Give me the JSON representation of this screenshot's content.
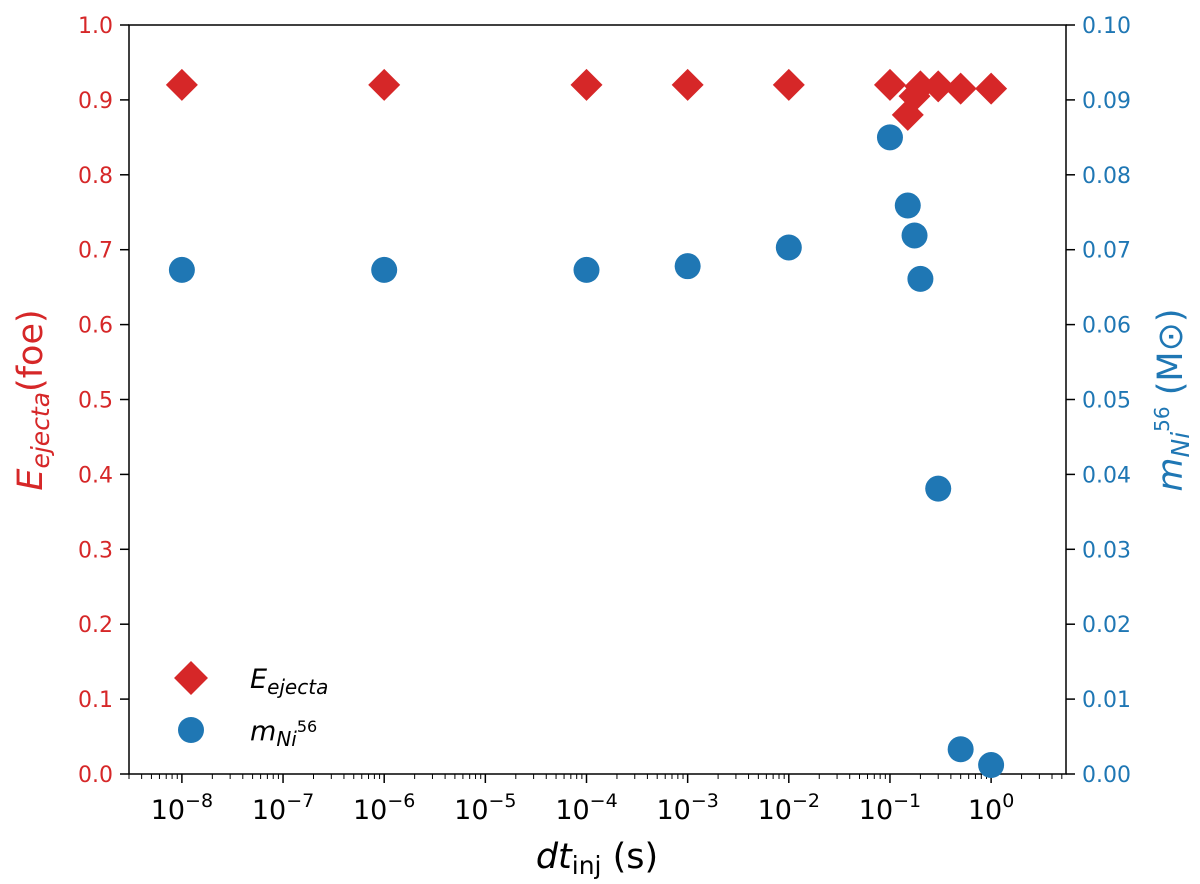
{
  "chart_data": {
    "type": "scatter",
    "x_scale": "log",
    "xlim": [
      3e-09,
      5.5
    ],
    "ylim_left": [
      0,
      1.0
    ],
    "ylim_right": [
      0,
      0.1
    ],
    "x_ticks": [
      1e-08,
      1e-07,
      1e-06,
      1e-05,
      0.0001,
      0.001,
      0.01,
      0.1,
      1
    ],
    "x_tick_labels": [
      {
        "base": "10",
        "exp": "−8"
      },
      {
        "base": "10",
        "exp": "−7"
      },
      {
        "base": "10",
        "exp": "−6"
      },
      {
        "base": "10",
        "exp": "−5"
      },
      {
        "base": "10",
        "exp": "−4"
      },
      {
        "base": "10",
        "exp": "−3"
      },
      {
        "base": "10",
        "exp": "−2"
      },
      {
        "base": "10",
        "exp": "−1"
      },
      {
        "base": "10",
        "exp": "0"
      }
    ],
    "y_left_ticks": [
      "0.0",
      "0.1",
      "0.2",
      "0.3",
      "0.4",
      "0.5",
      "0.6",
      "0.7",
      "0.8",
      "0.9",
      "1.0"
    ],
    "y_right_ticks": [
      "0.00",
      "0.01",
      "0.02",
      "0.03",
      "0.04",
      "0.05",
      "0.06",
      "0.07",
      "0.08",
      "0.09",
      "0.10"
    ],
    "xlabel": {
      "main": "dt",
      "sub": "inj",
      "unit": " (s)"
    },
    "ylabel_left": {
      "main": "E",
      "sub": "ejecta",
      "unit": "(foe)"
    },
    "ylabel_right": {
      "main": "m",
      "sub": "Ni",
      "sup": "56",
      "unit": " (M⊙)"
    },
    "series": [
      {
        "name": "E_ejecta",
        "legend": {
          "main": "E",
          "sub": "ejecta"
        },
        "axis": "left",
        "marker": "diamond",
        "color": "#d62728",
        "points": [
          {
            "x": 1e-08,
            "y": 0.92
          },
          {
            "x": 1e-06,
            "y": 0.92
          },
          {
            "x": 0.0001,
            "y": 0.92
          },
          {
            "x": 0.001,
            "y": 0.92
          },
          {
            "x": 0.01,
            "y": 0.92
          },
          {
            "x": 0.1,
            "y": 0.92
          },
          {
            "x": 0.15,
            "y": 0.88
          },
          {
            "x": 0.175,
            "y": 0.905
          },
          {
            "x": 0.2,
            "y": 0.918
          },
          {
            "x": 0.3,
            "y": 0.918
          },
          {
            "x": 0.5,
            "y": 0.915
          },
          {
            "x": 1.0,
            "y": 0.915
          }
        ]
      },
      {
        "name": "m_Ni56",
        "legend": {
          "main": "m",
          "sub": "Ni",
          "sup": "56"
        },
        "axis": "right",
        "marker": "circle",
        "color": "#1f77b4",
        "points": [
          {
            "x": 1e-08,
            "y": 0.0673
          },
          {
            "x": 1e-06,
            "y": 0.0673
          },
          {
            "x": 0.0001,
            "y": 0.0673
          },
          {
            "x": 0.001,
            "y": 0.0678
          },
          {
            "x": 0.01,
            "y": 0.0703
          },
          {
            "x": 0.1,
            "y": 0.085
          },
          {
            "x": 0.15,
            "y": 0.0759
          },
          {
            "x": 0.175,
            "y": 0.0719
          },
          {
            "x": 0.2,
            "y": 0.0661
          },
          {
            "x": 0.3,
            "y": 0.0381
          },
          {
            "x": 0.5,
            "y": 0.0033
          },
          {
            "x": 1.0,
            "y": 0.0012
          }
        ]
      }
    ],
    "legend_position": "lower-left",
    "grid": false
  }
}
